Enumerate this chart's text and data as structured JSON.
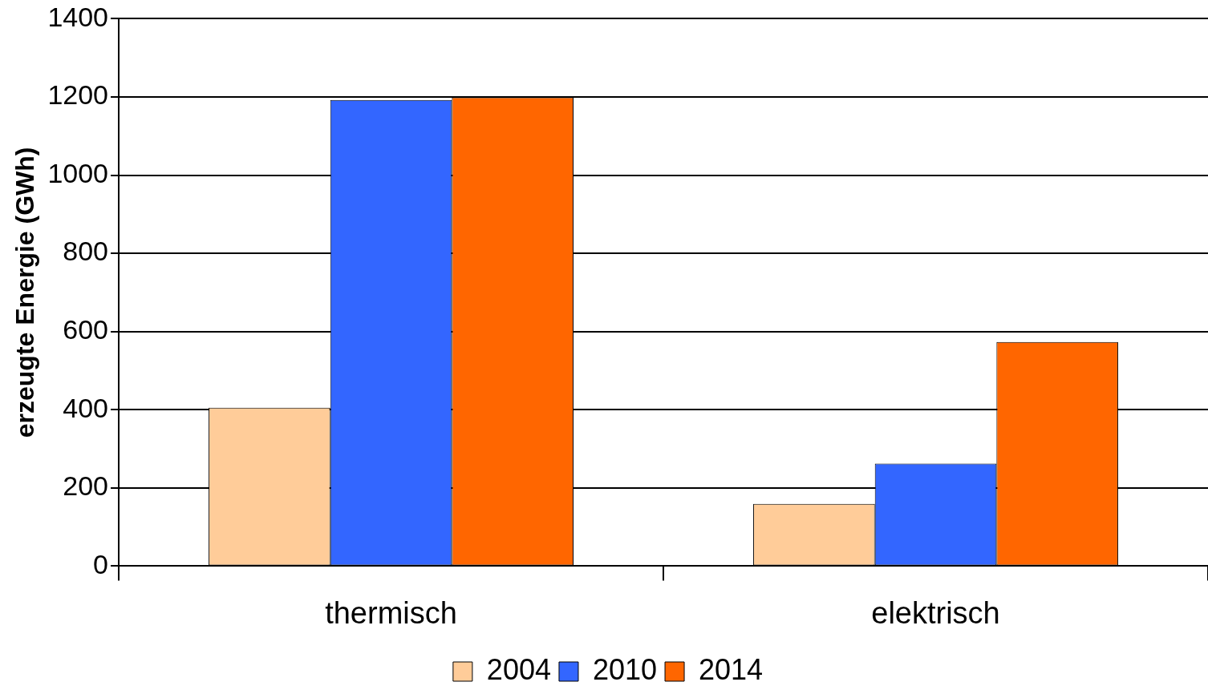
{
  "chart_data": {
    "type": "bar",
    "ylabel": "erzeugte Energie (GWh)",
    "categories": [
      "thermisch",
      "elektrisch"
    ],
    "series": [
      {
        "name": "2004",
        "color": "#ffcc99",
        "values": [
          405,
          159
        ]
      },
      {
        "name": "2010",
        "color": "#3366ff",
        "values": [
          1192,
          262
        ]
      },
      {
        "name": "2014",
        "color": "#ff6600",
        "values": [
          1199,
          573
        ]
      }
    ],
    "ylim": [
      0,
      1400
    ],
    "yticks": [
      0,
      200,
      400,
      600,
      800,
      1000,
      1200,
      1400
    ],
    "grid": "y",
    "legend": "bottom"
  }
}
